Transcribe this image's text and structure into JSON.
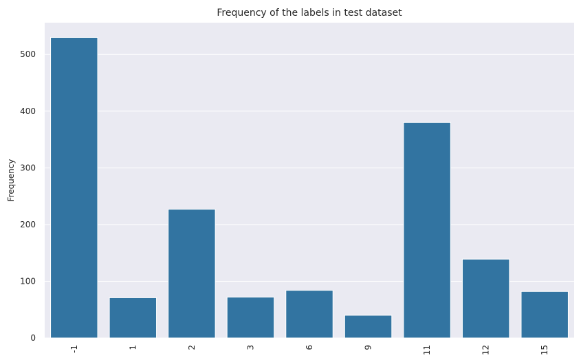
{
  "chart_data": {
    "type": "bar",
    "title": "Frequency of the labels in test dataset",
    "xlabel": "",
    "ylabel": "Frequency",
    "categories": [
      "-1",
      "1",
      "2",
      "3",
      "6",
      "9",
      "11",
      "12",
      "15"
    ],
    "values": [
      530,
      71,
      227,
      72,
      84,
      40,
      380,
      139,
      82
    ],
    "yticks": [
      0,
      100,
      200,
      300,
      400,
      500
    ],
    "ylim": [
      0,
      556
    ],
    "grid": true,
    "legend": "none",
    "colors": {
      "bar": "#3274a1",
      "background": "#eaeaf2",
      "grid": "#ffffff",
      "text": "#262626"
    }
  }
}
